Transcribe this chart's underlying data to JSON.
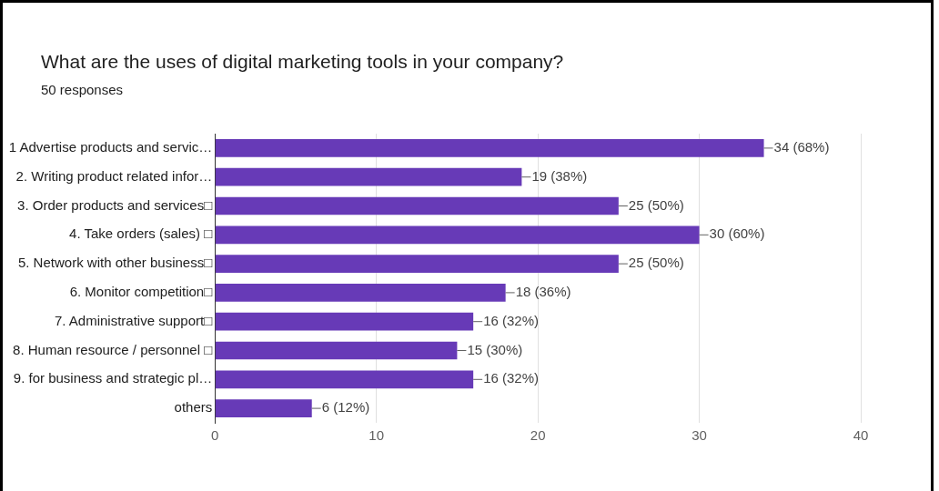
{
  "chart_data": {
    "type": "bar",
    "orientation": "horizontal",
    "title": "What are the uses of digital marketing tools in your company?",
    "subtitle": "50 responses",
    "categories": [
      "1 Advertise products and servic…",
      "2. Writing product related infor…",
      "3. Order products and services□",
      "4. Take orders (sales) □",
      "5. Network with other business□",
      "6. Monitor competition□",
      "7. Administrative support□",
      "8. Human resource / personnel □",
      "9. for business and strategic pl…",
      "others"
    ],
    "values": [
      34,
      19,
      25,
      30,
      25,
      18,
      16,
      15,
      16,
      6
    ],
    "value_labels": [
      "34 (68%)",
      "19 (38%)",
      "25 (50%)",
      "30 (60%)",
      "25 (50%)",
      "18 (36%)",
      "16 (32%)",
      "15 (30%)",
      "16 (32%)",
      "6 (12%)"
    ],
    "color": "#673ab7",
    "xlim": [
      0,
      40
    ],
    "xticks": [
      0,
      10,
      20,
      30,
      40
    ],
    "grid": "x"
  }
}
